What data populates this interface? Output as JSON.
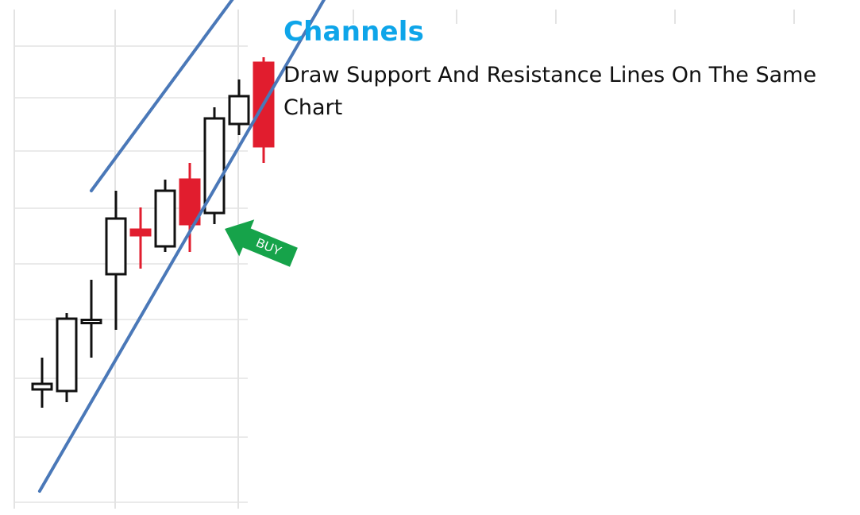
{
  "title": "Channels",
  "subtitle": "Draw Support And Resistance Lines On The Same Chart",
  "buy_label": "BUY",
  "colors": {
    "title": "#0ea5e9",
    "channel_line": "#4a78b8",
    "bull_candle": "#ffffff",
    "bear_candle": "#e11d2e",
    "buy_arrow": "#16a34a",
    "grid": "#e3e3e3"
  },
  "chart_data": {
    "type": "candlestick",
    "candles": [
      {
        "o": 2.1,
        "h": 2.6,
        "l": 1.7,
        "c": 2.0,
        "dir": "doji"
      },
      {
        "o": 2.0,
        "h": 3.4,
        "l": 1.8,
        "c": 3.3,
        "dir": "up"
      },
      {
        "o": 3.25,
        "h": 4.0,
        "l": 2.6,
        "c": 3.25,
        "dir": "doji"
      },
      {
        "o": 4.1,
        "h": 5.6,
        "l": 3.1,
        "c": 5.1,
        "dir": "up"
      },
      {
        "o": 4.9,
        "h": 5.3,
        "l": 4.2,
        "c": 4.8,
        "dir": "down"
      },
      {
        "o": 4.6,
        "h": 5.8,
        "l": 4.5,
        "c": 5.6,
        "dir": "up"
      },
      {
        "o": 5.8,
        "h": 6.1,
        "l": 4.5,
        "c": 5.0,
        "dir": "down"
      },
      {
        "o": 5.2,
        "h": 7.1,
        "l": 5.0,
        "c": 6.9,
        "dir": "up"
      },
      {
        "o": 6.8,
        "h": 7.6,
        "l": 6.6,
        "c": 7.3,
        "dir": "up"
      },
      {
        "o": 7.9,
        "h": 8.0,
        "l": 6.1,
        "c": 6.4,
        "dir": "down"
      }
    ],
    "channel": {
      "resistance": [
        {
          "x": 3.0,
          "y": 5.6
        },
        {
          "x": 12.5,
          "y": 11.3
        }
      ],
      "support": [
        {
          "x": 0.9,
          "y": 0.2
        },
        {
          "x": 14.5,
          "y": 10.6
        }
      ]
    },
    "buy_signal_at_candle": 7,
    "ylim": [
      0,
      10
    ],
    "grid": true
  }
}
